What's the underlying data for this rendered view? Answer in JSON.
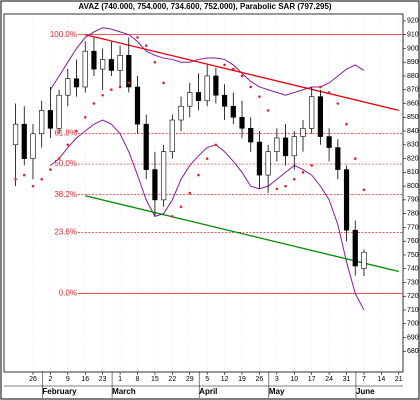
{
  "chart_data": {
    "type": "candlestick",
    "title": "AVAZ (740.000, 754.000, 734.600, 752.000), Parabolic SAR (797.295)",
    "categories": [
      null,
      null,
      "26",
      null,
      "2",
      null,
      "9",
      null,
      "16",
      null,
      "23",
      null,
      "1",
      null,
      "8",
      null,
      "15",
      null,
      "22",
      null,
      "29",
      null,
      "5",
      null,
      "12",
      null,
      "19",
      null,
      "26",
      null,
      "3",
      null,
      "10",
      null,
      "17",
      null,
      "24",
      null,
      "31",
      null,
      "7",
      null,
      "14",
      null,
      "21"
    ],
    "months": [
      "February",
      "March",
      "April",
      "May",
      "June"
    ],
    "ohlc": {
      "open": [
        830,
        845,
        820,
        838,
        855,
        842,
        866,
        878,
        872,
        898,
        885,
        892,
        884,
        895,
        872,
        845,
        812,
        790,
        825,
        848,
        858,
        868,
        862,
        880,
        866,
        858,
        850,
        842,
        832,
        808,
        825,
        835,
        822,
        836,
        842,
        865,
        836,
        828,
        812,
        768,
        740,
        null,
        null,
        null,
        null
      ],
      "high": [
        860,
        858,
        845,
        862,
        872,
        870,
        885,
        892,
        905,
        908,
        900,
        905,
        902,
        908,
        880,
        852,
        825,
        830,
        852,
        865,
        875,
        882,
        888,
        886,
        874,
        868,
        862,
        850,
        840,
        830,
        842,
        845,
        840,
        848,
        872,
        870,
        842,
        834,
        815,
        775,
        754,
        null,
        null,
        null,
        null
      ],
      "low": [
        800,
        815,
        805,
        828,
        835,
        838,
        858,
        865,
        868,
        880,
        870,
        880,
        872,
        868,
        838,
        805,
        778,
        785,
        820,
        840,
        850,
        855,
        858,
        860,
        848,
        845,
        835,
        825,
        798,
        795,
        818,
        815,
        812,
        825,
        838,
        830,
        818,
        805,
        760,
        735,
        734.6,
        null,
        null,
        null,
        null
      ],
      "close": [
        845,
        820,
        838,
        855,
        842,
        866,
        878,
        872,
        898,
        885,
        892,
        884,
        895,
        872,
        845,
        812,
        790,
        825,
        848,
        858,
        868,
        862,
        880,
        866,
        858,
        850,
        842,
        832,
        808,
        825,
        835,
        822,
        836,
        842,
        865,
        836,
        828,
        812,
        768,
        742,
        752,
        null,
        null,
        null,
        null
      ],
      "up_color": "#ffffff",
      "down_color": "#000000"
    },
    "upper_band": [
      null,
      null,
      null,
      null,
      870,
      880,
      890,
      900,
      908,
      912,
      915,
      914,
      912,
      910,
      905,
      898,
      895,
      893,
      892,
      890,
      890,
      892,
      893,
      893,
      892,
      888,
      882,
      876,
      872,
      870,
      868,
      866,
      868,
      870,
      872,
      872,
      875,
      880,
      885,
      888,
      884,
      null,
      null,
      null,
      null
    ],
    "lower_band": [
      null,
      null,
      null,
      null,
      815,
      820,
      828,
      835,
      840,
      845,
      848,
      845,
      838,
      825,
      808,
      790,
      778,
      780,
      790,
      805,
      815,
      822,
      828,
      830,
      825,
      818,
      810,
      800,
      798,
      800,
      805,
      810,
      815,
      812,
      808,
      800,
      790,
      772,
      745,
      722,
      710,
      null,
      null,
      null,
      null
    ],
    "band_color": "#8b1a9e",
    "sar": [
      805,
      808,
      800,
      805,
      812,
      820,
      830,
      840,
      850,
      860,
      866,
      870,
      872,
      875,
      908,
      902,
      890,
      875,
      778,
      785,
      795,
      808,
      820,
      830,
      888,
      885,
      880,
      872,
      865,
      855,
      798,
      800,
      805,
      810,
      815,
      872,
      868,
      860,
      845,
      820,
      797.295,
      null,
      null,
      null,
      null
    ],
    "sar_color": "#e8202a",
    "fib_levels": [
      {
        "label": "100.0%",
        "value": 910
      },
      {
        "label": "61.8%",
        "value": 838.2
      },
      {
        "label": "50.0%",
        "value": 816
      },
      {
        "label": "38.2%",
        "value": 793.8
      },
      {
        "label": "23.6%",
        "value": 766.4
      },
      {
        "label": "0.0%",
        "value": 722
      }
    ],
    "fib_color": "#e8202a",
    "trend_lines": [
      {
        "color": "#e8000b",
        "x": [
          8,
          44
        ],
        "y": [
          910,
          855
        ]
      },
      {
        "color": "#008a00",
        "x": [
          8,
          44
        ],
        "y": [
          793,
          738
        ]
      }
    ],
    "ylim": [
      665,
      925
    ],
    "yticks": [
      680,
      690,
      700,
      710,
      720,
      730,
      740,
      750,
      760,
      770,
      780,
      790,
      800,
      810,
      820,
      830,
      840,
      850,
      860,
      870,
      880,
      890,
      900,
      910,
      920
    ]
  }
}
